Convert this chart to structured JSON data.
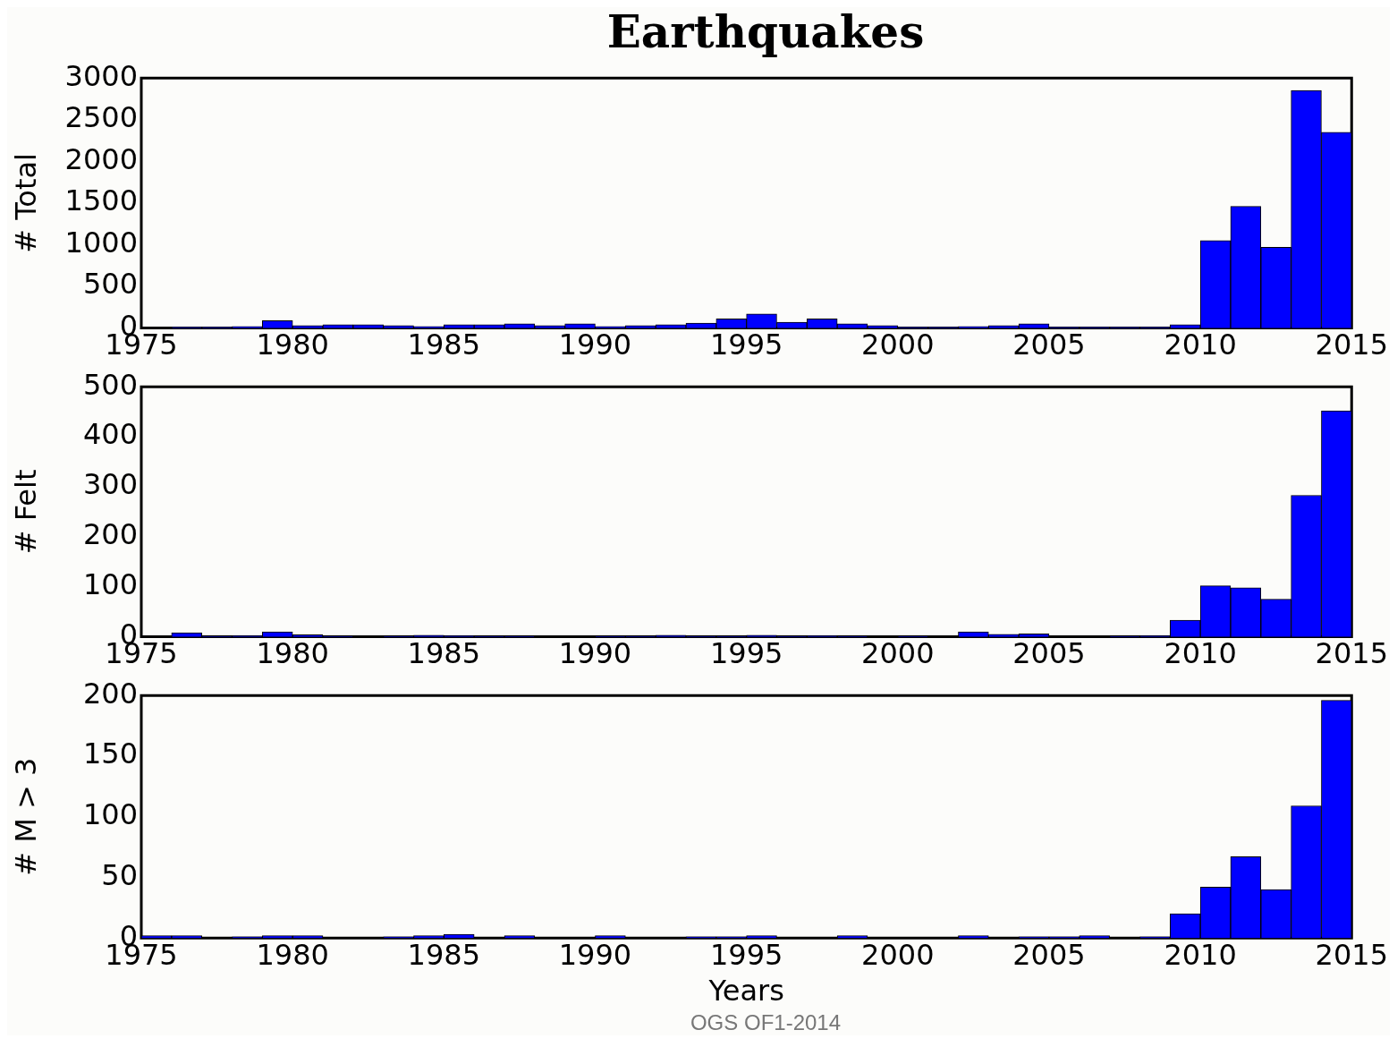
{
  "chart_data": [
    {
      "type": "histogram",
      "title": "Earthquakes",
      "ylabel": "# Total",
      "color": "#0000ff",
      "bins": [
        1975,
        1976,
        1977,
        1978,
        1979,
        1980,
        1981,
        1982,
        1983,
        1984,
        1985,
        1986,
        1987,
        1988,
        1989,
        1990,
        1991,
        1992,
        1993,
        1994,
        1995,
        1996,
        1997,
        1998,
        1999,
        2000,
        2001,
        2002,
        2003,
        2004,
        2005,
        2006,
        2007,
        2008,
        2009,
        2010,
        2011,
        2012,
        2013,
        2014,
        2015
      ],
      "values": [
        0,
        10,
        10,
        20,
        90,
        30,
        40,
        40,
        30,
        20,
        40,
        40,
        50,
        30,
        50,
        20,
        30,
        40,
        60,
        110,
        170,
        70,
        110,
        50,
        30,
        10,
        10,
        20,
        30,
        50,
        10,
        10,
        10,
        10,
        40,
        1050,
        1460,
        970,
        2850,
        2350
      ],
      "xlim": [
        1975,
        2015
      ],
      "xticks": [
        1975,
        1980,
        1985,
        1990,
        1995,
        2000,
        2005,
        2010,
        2015
      ],
      "ylim": [
        0,
        3000
      ],
      "yticks": [
        0,
        500,
        1000,
        1500,
        2000,
        2500,
        3000
      ],
      "grid": false,
      "legend": false
    },
    {
      "type": "histogram",
      "ylabel": "# Felt",
      "color": "#0000ff",
      "bins": [
        1975,
        1976,
        1977,
        1978,
        1979,
        1980,
        1981,
        1982,
        1983,
        1984,
        1985,
        1986,
        1987,
        1988,
        1989,
        1990,
        1991,
        1992,
        1993,
        1994,
        1995,
        1996,
        1997,
        1998,
        1999,
        2000,
        2001,
        2002,
        2003,
        2004,
        2005,
        2006,
        2007,
        2008,
        2009,
        2010,
        2011,
        2012,
        2013,
        2014,
        2015
      ],
      "values": [
        0,
        8,
        1,
        2,
        10,
        4,
        1,
        0,
        1,
        3,
        2,
        1,
        1,
        0,
        0,
        1,
        1,
        3,
        1,
        1,
        3,
        1,
        2,
        1,
        0,
        1,
        0,
        10,
        5,
        6,
        0,
        0,
        1,
        2,
        33,
        102,
        98,
        75,
        283,
        452
      ],
      "xlim": [
        1975,
        2015
      ],
      "xticks": [
        1975,
        1980,
        1985,
        1990,
        1995,
        2000,
        2005,
        2010,
        2015
      ],
      "ylim": [
        0,
        500
      ],
      "yticks": [
        0,
        100,
        200,
        300,
        400,
        500
      ],
      "grid": false,
      "legend": false
    },
    {
      "type": "histogram",
      "ylabel": "# M > 3",
      "xlabel": "Years",
      "color": "#0000ff",
      "bins": [
        1975,
        1976,
        1977,
        1978,
        1979,
        1980,
        1981,
        1982,
        1983,
        1984,
        1985,
        1986,
        1987,
        1988,
        1989,
        1990,
        1991,
        1992,
        1993,
        1994,
        1995,
        1996,
        1997,
        1998,
        1999,
        2000,
        2001,
        2002,
        2003,
        2004,
        2005,
        2006,
        2007,
        2008,
        2009,
        2010,
        2011,
        2012,
        2013,
        2014,
        2015
      ],
      "values": [
        2,
        2,
        0,
        1,
        2,
        2,
        0,
        0,
        1,
        2,
        3,
        0,
        2,
        0,
        0,
        2,
        0,
        0,
        1,
        1,
        2,
        0,
        0,
        2,
        0,
        0,
        0,
        2,
        0,
        1,
        1,
        2,
        0,
        1,
        20,
        42,
        67,
        40,
        109,
        196
      ],
      "xlim": [
        1975,
        2015
      ],
      "xticks": [
        1975,
        1980,
        1985,
        1990,
        1995,
        2000,
        2005,
        2010,
        2015
      ],
      "ylim": [
        0,
        200
      ],
      "yticks": [
        0,
        50,
        100,
        150,
        200
      ],
      "grid": false,
      "legend": false,
      "annotations": [
        "OGS OF1-2014"
      ]
    }
  ]
}
